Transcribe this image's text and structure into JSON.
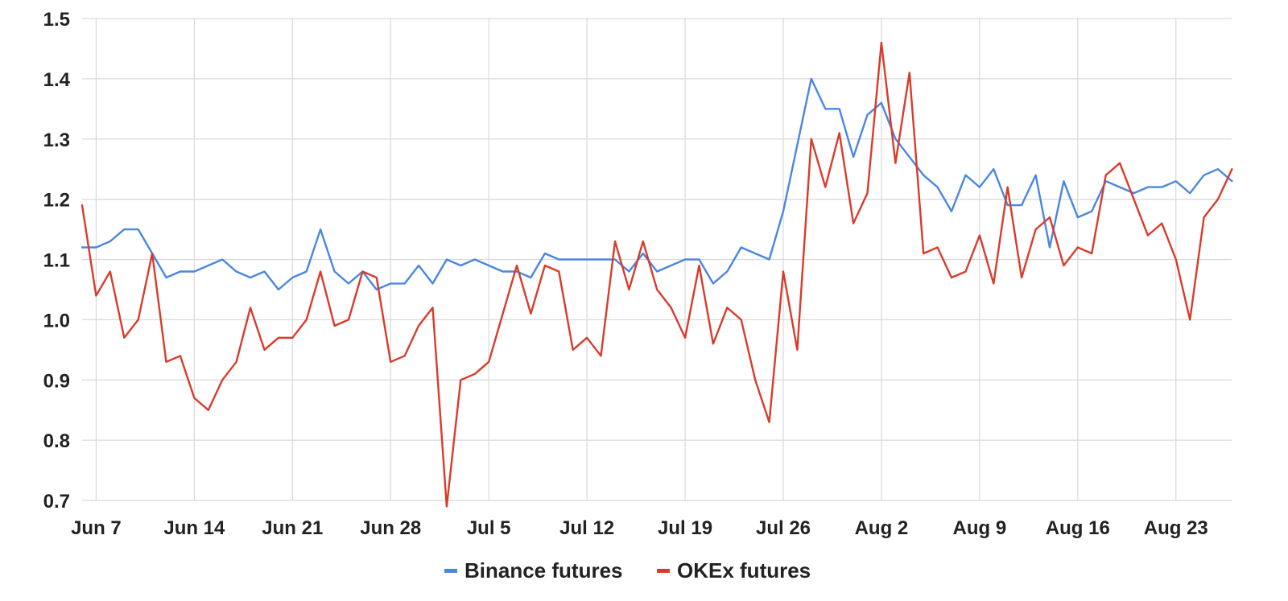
{
  "chart_data": {
    "type": "line",
    "title": "",
    "xlabel": "",
    "ylabel": "",
    "ylim": [
      0.7,
      1.5
    ],
    "y_ticks": [
      "0.7",
      "0.8",
      "0.9",
      "1.0",
      "1.1",
      "1.2",
      "1.3",
      "1.4",
      "1.5"
    ],
    "x_tick_labels": [
      "Jun 7",
      "Jun 14",
      "Jun 21",
      "Jun 28",
      "Jul 5",
      "Jul 12",
      "Jul 19",
      "Jul 26",
      "Aug 2",
      "Aug 9",
      "Aug 16",
      "Aug 23"
    ],
    "x_tick_days": [
      0,
      7,
      14,
      21,
      28,
      35,
      42,
      49,
      56,
      63,
      70,
      77
    ],
    "x_range_days": [
      -1,
      81
    ],
    "grid": true,
    "legend_position": "bottom-center",
    "series": [
      {
        "name": "Binance futures",
        "color": "#4a86e0",
        "days": [
          -1,
          0,
          1,
          2,
          3,
          4,
          5,
          6,
          7,
          8,
          9,
          10,
          11,
          12,
          13,
          14,
          15,
          16,
          17,
          18,
          19,
          20,
          21,
          22,
          23,
          24,
          25,
          26,
          27,
          28,
          29,
          30,
          31,
          32,
          33,
          34,
          35,
          36,
          37,
          38,
          39,
          40,
          41,
          42,
          43,
          44,
          45,
          46,
          47,
          48,
          49,
          50,
          51,
          52,
          53,
          54,
          55,
          56,
          57,
          58,
          59,
          60,
          61,
          62,
          63,
          64,
          65,
          66,
          67,
          68,
          69,
          70,
          71,
          72,
          73,
          74,
          75,
          76,
          77,
          78,
          79,
          80,
          81
        ],
        "values": [
          1.12,
          1.12,
          1.13,
          1.15,
          1.15,
          1.11,
          1.07,
          1.08,
          1.08,
          1.09,
          1.1,
          1.08,
          1.07,
          1.08,
          1.05,
          1.07,
          1.08,
          1.15,
          1.08,
          1.06,
          1.08,
          1.05,
          1.06,
          1.06,
          1.09,
          1.06,
          1.1,
          1.09,
          1.1,
          1.09,
          1.08,
          1.08,
          1.07,
          1.11,
          1.1,
          1.1,
          1.1,
          1.1,
          1.1,
          1.08,
          1.11,
          1.08,
          1.09,
          1.1,
          1.1,
          1.06,
          1.08,
          1.12,
          1.11,
          1.1,
          1.18,
          1.29,
          1.4,
          1.35,
          1.35,
          1.27,
          1.34,
          1.36,
          1.3,
          1.27,
          1.24,
          1.22,
          1.18,
          1.24,
          1.22,
          1.25,
          1.19,
          1.19,
          1.24,
          1.12,
          1.23,
          1.17,
          1.18,
          1.23,
          1.22,
          1.21,
          1.22,
          1.22,
          1.23,
          1.21,
          1.24,
          1.25,
          1.23
        ]
      },
      {
        "name": "OKEx futures",
        "color": "#d93b2b",
        "days": [
          -1,
          0,
          1,
          2,
          3,
          4,
          5,
          6,
          7,
          8,
          9,
          10,
          11,
          12,
          13,
          14,
          15,
          16,
          17,
          18,
          19,
          20,
          21,
          22,
          23,
          24,
          25,
          26,
          27,
          28,
          29,
          30,
          31,
          32,
          33,
          34,
          35,
          36,
          37,
          38,
          39,
          40,
          41,
          42,
          43,
          44,
          45,
          46,
          47,
          48,
          49,
          50,
          51,
          52,
          53,
          54,
          55,
          56,
          57,
          58,
          59,
          60,
          61,
          62,
          63,
          64,
          65,
          66,
          67,
          68,
          69,
          70,
          71,
          72,
          73,
          74,
          75,
          76,
          77,
          78,
          79,
          80,
          81
        ],
        "values": [
          1.19,
          1.04,
          1.08,
          0.97,
          1.0,
          1.11,
          0.93,
          0.94,
          0.87,
          0.85,
          0.9,
          0.93,
          1.02,
          0.95,
          0.97,
          0.97,
          1.0,
          1.08,
          0.99,
          1.0,
          1.08,
          1.07,
          0.93,
          0.94,
          0.99,
          1.02,
          0.69,
          0.9,
          0.91,
          0.93,
          1.01,
          1.09,
          1.01,
          1.09,
          1.08,
          0.95,
          0.97,
          0.94,
          1.13,
          1.05,
          1.13,
          1.05,
          1.02,
          0.97,
          1.09,
          0.96,
          1.02,
          1.0,
          0.9,
          0.83,
          1.08,
          0.95,
          1.3,
          1.22,
          1.31,
          1.16,
          1.21,
          1.46,
          1.26,
          1.41,
          1.11,
          1.12,
          1.07,
          1.08,
          1.14,
          1.06,
          1.22,
          1.07,
          1.15,
          1.17,
          1.09,
          1.12,
          1.11,
          1.24,
          1.26,
          1.2,
          1.14,
          1.16,
          1.1,
          1.0,
          1.17,
          1.2,
          1.25
        ]
      }
    ]
  }
}
